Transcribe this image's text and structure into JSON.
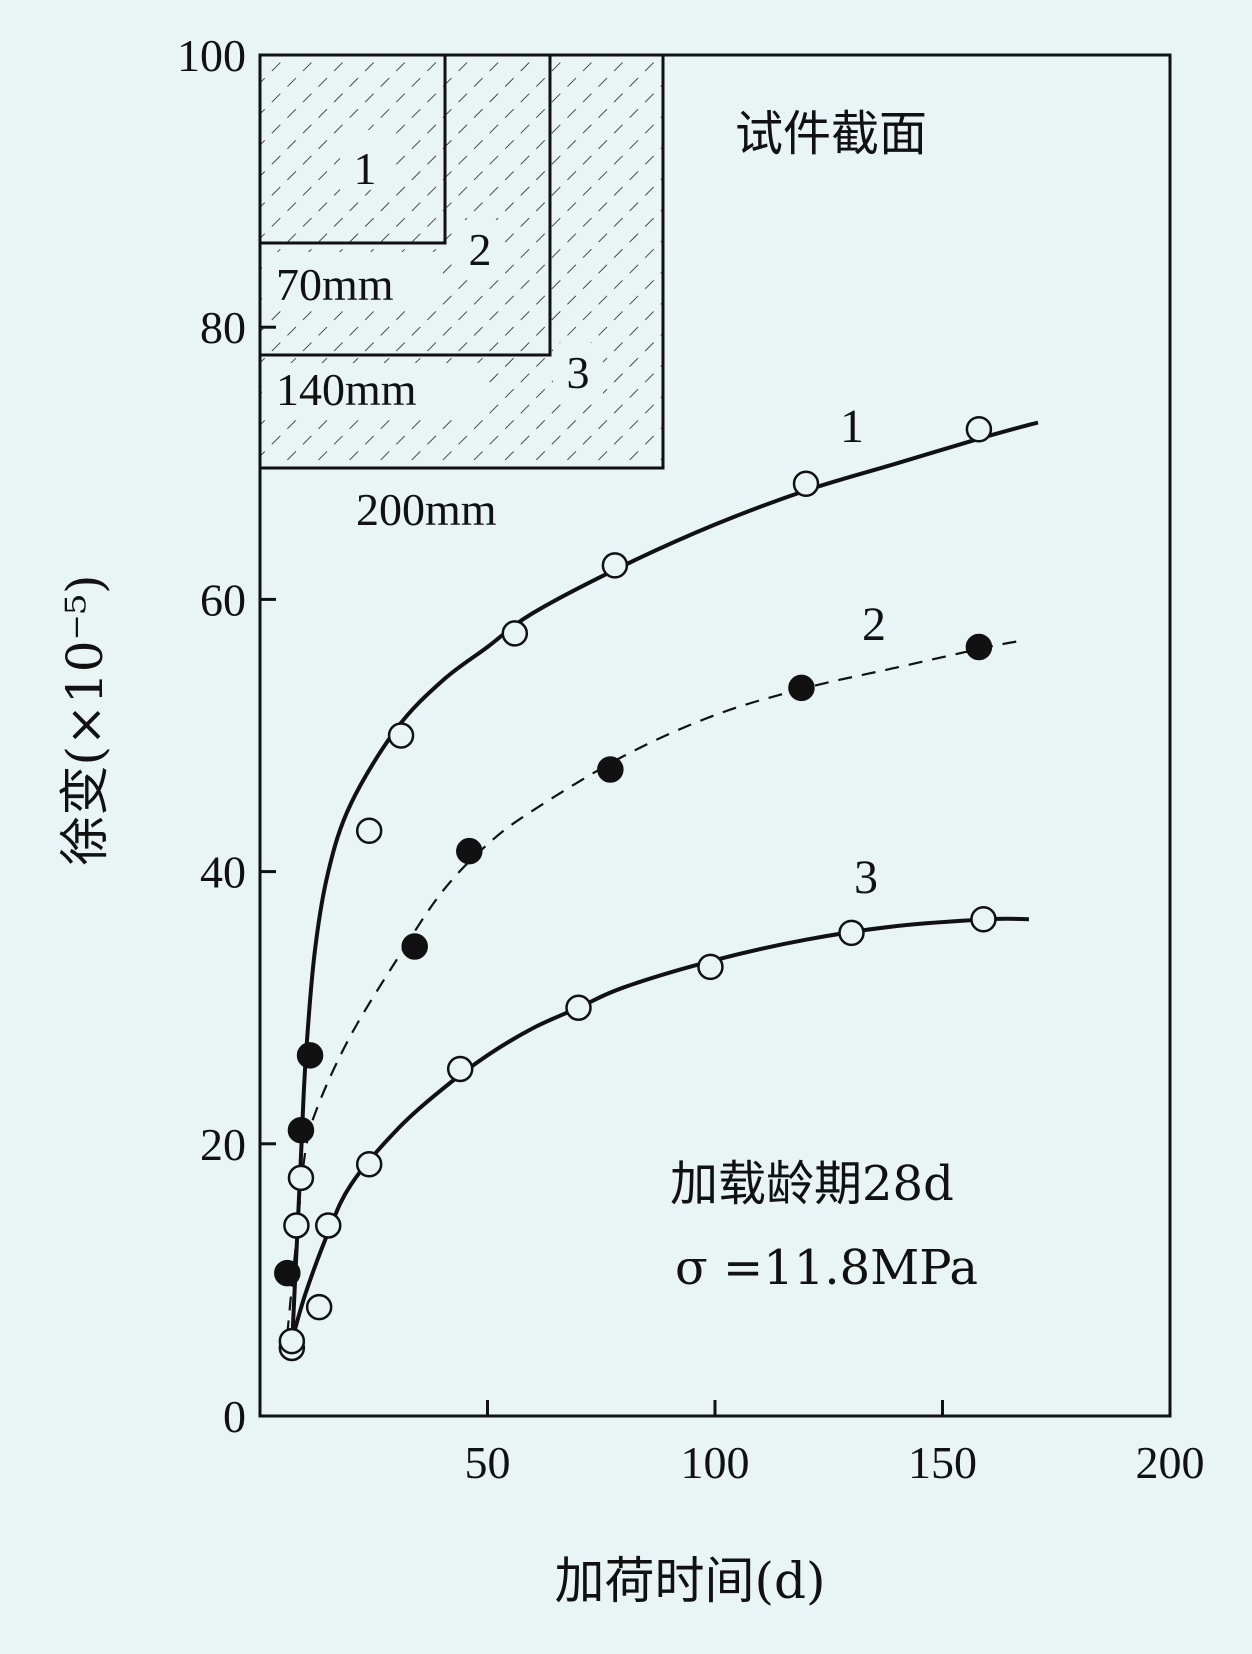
{
  "chart_data": {
    "type": "scatter",
    "xlabel": "加荷时间(d)",
    "ylabel": "徐变(×10⁻⁵)",
    "xlim": [
      0,
      200
    ],
    "ylim": [
      0,
      100
    ],
    "x_ticks": [
      "50",
      "100",
      "150",
      "200"
    ],
    "y_ticks": [
      "0",
      "20",
      "40",
      "60",
      "80",
      "100"
    ],
    "grid": false,
    "annotations": [
      "加载龄期28d",
      "σ =11.8MPa"
    ],
    "inset": {
      "title": "试件截面",
      "sections": [
        {
          "label": "1",
          "dimension": "70mm"
        },
        {
          "label": "2",
          "dimension": "140mm"
        },
        {
          "label": "3",
          "dimension": "200mm"
        }
      ]
    },
    "series": [
      {
        "name": "1",
        "marker": "open-circle",
        "line": "solid",
        "points": [
          [
            7,
            5
          ],
          [
            8,
            14
          ],
          [
            9,
            17.5
          ],
          [
            15,
            14
          ],
          [
            24,
            43
          ],
          [
            31,
            50
          ],
          [
            56,
            57.5
          ],
          [
            78,
            62.5
          ],
          [
            120,
            68.5
          ],
          [
            158,
            72.5
          ]
        ],
        "curve": [
          [
            7,
            5
          ],
          [
            8,
            12
          ],
          [
            9,
            19
          ],
          [
            10,
            26
          ],
          [
            12,
            34
          ],
          [
            15,
            40
          ],
          [
            20,
            45
          ],
          [
            30,
            50.5
          ],
          [
            40,
            54
          ],
          [
            50,
            56.5
          ],
          [
            60,
            59
          ],
          [
            80,
            62.5
          ],
          [
            100,
            65.5
          ],
          [
            120,
            68
          ],
          [
            140,
            70
          ],
          [
            160,
            72
          ],
          [
            171,
            73
          ]
        ]
      },
      {
        "name": "2",
        "marker": "filled-circle",
        "line": "dashed",
        "points": [
          [
            6,
            10.5
          ],
          [
            9,
            21
          ],
          [
            11,
            26.5
          ],
          [
            34,
            34.5
          ],
          [
            46,
            41.5
          ],
          [
            77,
            47.5
          ],
          [
            119,
            53.5
          ],
          [
            158,
            56.5
          ]
        ],
        "curve": [
          [
            6,
            6
          ],
          [
            8,
            13
          ],
          [
            10,
            19.5
          ],
          [
            13,
            23
          ],
          [
            20,
            28
          ],
          [
            30,
            33.5
          ],
          [
            40,
            38.5
          ],
          [
            50,
            42
          ],
          [
            60,
            44.5
          ],
          [
            80,
            48.5
          ],
          [
            100,
            51.5
          ],
          [
            120,
            53.5
          ],
          [
            140,
            55
          ],
          [
            160,
            56.5
          ],
          [
            168,
            57
          ]
        ]
      },
      {
        "name": "3",
        "marker": "open-circle",
        "line": "solid",
        "points": [
          [
            7,
            5.5
          ],
          [
            13,
            8
          ],
          [
            24,
            18.5
          ],
          [
            44,
            25.5
          ],
          [
            70,
            30
          ],
          [
            99,
            33
          ],
          [
            130,
            35.5
          ],
          [
            159,
            36.5
          ]
        ],
        "curve": [
          [
            7,
            5.5
          ],
          [
            10,
            9
          ],
          [
            15,
            13.5
          ],
          [
            20,
            17
          ],
          [
            30,
            21
          ],
          [
            40,
            24
          ],
          [
            50,
            26.5
          ],
          [
            60,
            28.5
          ],
          [
            70,
            30
          ],
          [
            80,
            31.5
          ],
          [
            100,
            33.5
          ],
          [
            120,
            35
          ],
          [
            140,
            36
          ],
          [
            160,
            36.5
          ],
          [
            169,
            36.5
          ]
        ]
      }
    ]
  }
}
